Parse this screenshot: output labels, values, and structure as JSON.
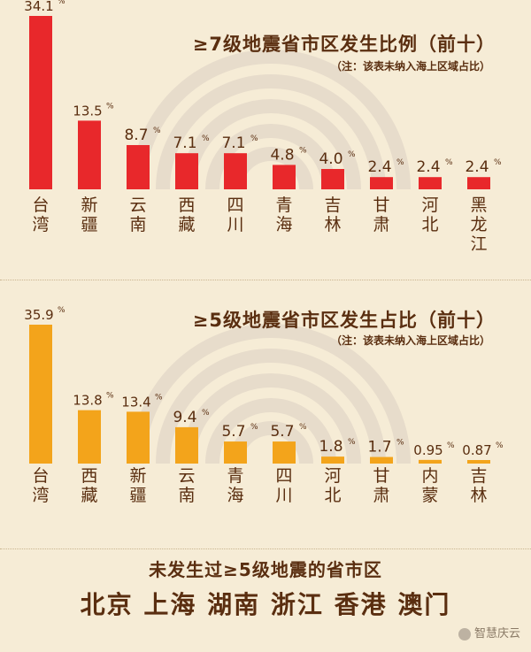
{
  "colors": {
    "bg": "#f6ecd6",
    "bar_top": "#e8282b",
    "bar_bottom": "#f3a41b",
    "text": "#5a2e10",
    "arcs": "#e7dccb"
  },
  "chart_data": [
    {
      "type": "bar",
      "title": "≥7级地震省市区发生比例（前十）",
      "note": "（注：该表未纳入海上区域占比）",
      "categories": [
        "台湾",
        "新疆",
        "云南",
        "西藏",
        "四川",
        "青海",
        "吉林",
        "甘肃",
        "河北",
        "黑龙江"
      ],
      "values": [
        34.1,
        13.5,
        8.7,
        7.1,
        7.1,
        4.8,
        4.0,
        2.4,
        2.4,
        2.4
      ],
      "value_labels": [
        "34.1",
        "13.5",
        "8.7",
        "7.1",
        "7.1",
        "4.8",
        "4.0",
        "2.4",
        "2.4",
        "2.4"
      ],
      "unit": "%",
      "ylim": [
        0,
        34.1
      ]
    },
    {
      "type": "bar",
      "title": "≥5级地震省市区发生占比（前十）",
      "note": "（注：该表未纳入海上区域占比）",
      "categories": [
        "台湾",
        "西藏",
        "新疆",
        "云南",
        "青海",
        "四川",
        "河北",
        "甘肃",
        "内蒙",
        "吉林"
      ],
      "values": [
        35.9,
        13.8,
        13.4,
        9.4,
        5.7,
        5.7,
        1.8,
        1.7,
        0.95,
        0.87
      ],
      "value_labels": [
        "35.9",
        "13.8",
        "13.4",
        "9.4",
        "5.7",
        "5.7",
        "1.8",
        "1.7",
        "0.95",
        "0.87"
      ],
      "unit": "%",
      "ylim": [
        0,
        35.9
      ]
    }
  ],
  "footer": {
    "title": "未发生过≥5级地震的省市区",
    "list": "北京 上海 湖南 浙江 香港 澳门"
  },
  "watermark": "智慧庆云"
}
